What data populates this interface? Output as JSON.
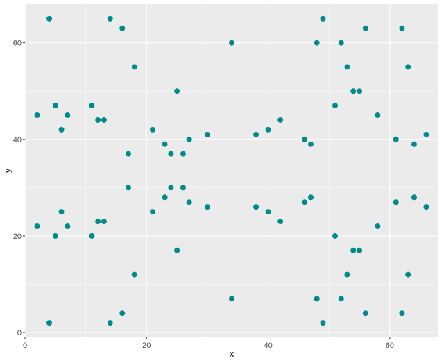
{
  "chart_data": {
    "type": "scatter",
    "xlabel": "x",
    "ylabel": "y",
    "xlim": [
      0,
      68
    ],
    "ylim": [
      -1,
      68
    ],
    "x_ticks": [
      0,
      20,
      40,
      60
    ],
    "y_ticks": [
      0,
      20,
      40,
      60
    ],
    "x_tick_labels": [
      "0",
      "20",
      "40",
      "60"
    ],
    "y_tick_labels": [
      "0",
      "20",
      "40",
      "60"
    ],
    "grid": true,
    "point_color": "#008b8b",
    "panel_color": "#ebebeb",
    "points": [
      [
        2,
        45
      ],
      [
        2,
        22
      ],
      [
        4,
        65
      ],
      [
        4,
        2
      ],
      [
        5,
        47
      ],
      [
        5,
        20
      ],
      [
        6,
        42
      ],
      [
        6,
        25
      ],
      [
        7,
        45
      ],
      [
        7,
        22
      ],
      [
        11,
        47
      ],
      [
        11,
        20
      ],
      [
        12,
        44
      ],
      [
        12,
        23
      ],
      [
        13,
        44
      ],
      [
        13,
        23
      ],
      [
        14,
        65
      ],
      [
        14,
        2
      ],
      [
        16,
        63
      ],
      [
        16,
        4
      ],
      [
        17,
        37
      ],
      [
        17,
        30
      ],
      [
        18,
        55
      ],
      [
        18,
        12
      ],
      [
        21,
        42
      ],
      [
        21,
        25
      ],
      [
        23,
        39
      ],
      [
        23,
        28
      ],
      [
        24,
        37
      ],
      [
        24,
        30
      ],
      [
        25,
        50
      ],
      [
        25,
        17
      ],
      [
        26,
        37
      ],
      [
        26,
        30
      ],
      [
        27,
        40
      ],
      [
        27,
        27
      ],
      [
        30,
        41
      ],
      [
        30,
        26
      ],
      [
        34,
        60
      ],
      [
        34,
        7
      ],
      [
        38,
        41
      ],
      [
        38,
        26
      ],
      [
        40,
        42
      ],
      [
        40,
        25
      ],
      [
        42,
        44
      ],
      [
        42,
        23
      ],
      [
        46,
        40
      ],
      [
        46,
        27
      ],
      [
        47,
        39
      ],
      [
        47,
        28
      ],
      [
        48,
        60
      ],
      [
        48,
        7
      ],
      [
        49,
        65
      ],
      [
        49,
        2
      ],
      [
        51,
        47
      ],
      [
        51,
        20
      ],
      [
        52,
        60
      ],
      [
        52,
        7
      ],
      [
        53,
        55
      ],
      [
        53,
        12
      ],
      [
        54,
        50
      ],
      [
        54,
        17
      ],
      [
        55,
        50
      ],
      [
        55,
        17
      ],
      [
        56,
        63
      ],
      [
        56,
        4
      ],
      [
        58,
        45
      ],
      [
        58,
        22
      ],
      [
        61,
        40
      ],
      [
        61,
        27
      ],
      [
        62,
        63
      ],
      [
        62,
        4
      ],
      [
        63,
        55
      ],
      [
        63,
        12
      ],
      [
        64,
        39
      ],
      [
        64,
        28
      ],
      [
        66,
        41
      ],
      [
        66,
        26
      ]
    ]
  }
}
